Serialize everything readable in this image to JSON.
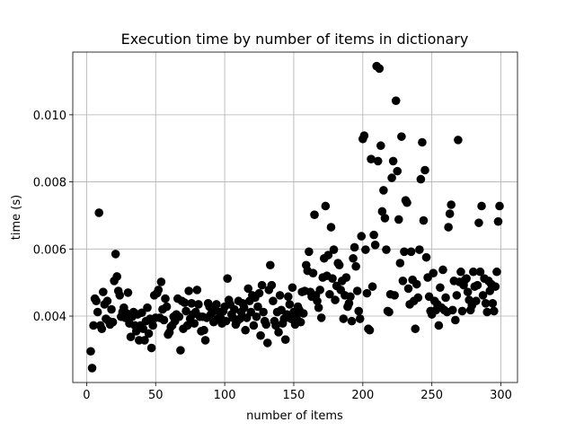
{
  "chart_data": {
    "type": "scatter",
    "title": "Execution time by number of items in dictionary",
    "x_label": "number of items",
    "y_label": "time (s)",
    "color": "#000000",
    "grid": true,
    "xlim": [
      -10,
      312
    ],
    "ylim": [
      0.00202,
      0.01187
    ],
    "xticks": [
      0,
      50,
      100,
      150,
      200,
      250,
      300
    ],
    "yticks": [
      0.004,
      0.006,
      0.008,
      {
        "value": 0.01,
        "label": "0.010"
      }
    ],
    "x": [
      3,
      4,
      5,
      6,
      7,
      8,
      9,
      10,
      11,
      12,
      13,
      14,
      15,
      16,
      17,
      18,
      19,
      20,
      21,
      22,
      23,
      24,
      25,
      26,
      27,
      28,
      29,
      30,
      31,
      32,
      33,
      34,
      35,
      36,
      37,
      38,
      39,
      40,
      41,
      42,
      43,
      44,
      45,
      46,
      47,
      48,
      49,
      50,
      51,
      52,
      53,
      54,
      55,
      56,
      57,
      58,
      59,
      60,
      61,
      62,
      63,
      64,
      65,
      66,
      67,
      68,
      69,
      70,
      71,
      72,
      73,
      74,
      75,
      76,
      77,
      78,
      79,
      80,
      81,
      82,
      83,
      84,
      85,
      86,
      87,
      88,
      89,
      90,
      91,
      92,
      93,
      94,
      95,
      96,
      97,
      98,
      99,
      100,
      101,
      102,
      103,
      104,
      105,
      106,
      107,
      108,
      109,
      110,
      111,
      112,
      113,
      114,
      115,
      116,
      117,
      118,
      119,
      120,
      121,
      122,
      123,
      124,
      125,
      126,
      127,
      128,
      129,
      130,
      131,
      132,
      133,
      134,
      135,
      136,
      137,
      138,
      139,
      140,
      141,
      142,
      143,
      144,
      145,
      146,
      147,
      148,
      149,
      150,
      151,
      152,
      153,
      154,
      155,
      156,
      157,
      158,
      159,
      160,
      161,
      162,
      163,
      164,
      165,
      166,
      167,
      168,
      169,
      170,
      171,
      172,
      173,
      174,
      175,
      176,
      177,
      178,
      179,
      180,
      181,
      182,
      183,
      184,
      185,
      186,
      187,
      188,
      189,
      190,
      191,
      192,
      193,
      194,
      195,
      196,
      197,
      198,
      199,
      200,
      201,
      202,
      203,
      204,
      205,
      206,
      207,
      208,
      209,
      210,
      211,
      212,
      213,
      214,
      215,
      216,
      217,
      218,
      219,
      220,
      221,
      222,
      223,
      224,
      225,
      226,
      227,
      228,
      229,
      230,
      231,
      232,
      233,
      234,
      235,
      236,
      237,
      238,
      239,
      240,
      241,
      242,
      243,
      244,
      245,
      246,
      247,
      248,
      249,
      250,
      251,
      252,
      253,
      254,
      255,
      256,
      257,
      258,
      259,
      260,
      261,
      262,
      263,
      264,
      265,
      266,
      267,
      268,
      269,
      270,
      271,
      272,
      273,
      274,
      275,
      276,
      277,
      278,
      279,
      280,
      281,
      282,
      283,
      284,
      285,
      286,
      287,
      288,
      289,
      290,
      291,
      292,
      293,
      294,
      295,
      296,
      297,
      298,
      299
    ],
    "values": [
      0.00295,
      0.00245,
      0.00372,
      0.00452,
      0.00445,
      0.00412,
      0.00708,
      0.00372,
      0.00362,
      0.00472,
      0.00435,
      0.00392,
      0.00445,
      0.00385,
      0.00375,
      0.0042,
      0.00382,
      0.00505,
      0.00585,
      0.00518,
      0.00475,
      0.00462,
      0.00398,
      0.00412,
      0.00425,
      0.00395,
      0.00408,
      0.0047,
      0.00378,
      0.00338,
      0.00398,
      0.00412,
      0.00372,
      0.00355,
      0.00405,
      0.00328,
      0.00372,
      0.0041,
      0.00362,
      0.00328,
      0.00385,
      0.00425,
      0.00348,
      0.00392,
      0.00305,
      0.00372,
      0.00462,
      0.00395,
      0.00468,
      0.00478,
      0.00395,
      0.00502,
      0.0042,
      0.00388,
      0.00452,
      0.00428,
      0.00345,
      0.00352,
      0.00368,
      0.00372,
      0.00398,
      0.00385,
      0.00405,
      0.00452,
      0.00398,
      0.00298,
      0.00445,
      0.00362,
      0.0044,
      0.00415,
      0.00372,
      0.00475,
      0.00392,
      0.00438,
      0.00405,
      0.00378,
      0.00412,
      0.00478,
      0.00435,
      0.00398,
      0.00355,
      0.00398,
      0.00358,
      0.00328,
      0.00395,
      0.00438,
      0.00428,
      0.00405,
      0.00412,
      0.00382,
      0.0042,
      0.00435,
      0.00392,
      0.00412,
      0.00395,
      0.00378,
      0.00415,
      0.00428,
      0.00385,
      0.00512,
      0.00448,
      0.00435,
      0.00405,
      0.00395,
      0.0042,
      0.00375,
      0.00385,
      0.00445,
      0.00392,
      0.00412,
      0.00438,
      0.00425,
      0.00358,
      0.00395,
      0.00482,
      0.00445,
      0.00412,
      0.00462,
      0.00372,
      0.00455,
      0.00398,
      0.00428,
      0.00468,
      0.00342,
      0.00492,
      0.00412,
      0.00385,
      0.00375,
      0.0032,
      0.00478,
      0.00552,
      0.00492,
      0.00445,
      0.00385,
      0.00372,
      0.00412,
      0.00352,
      0.00462,
      0.00418,
      0.00378,
      0.00392,
      0.0033,
      0.00405,
      0.00458,
      0.00435,
      0.00392,
      0.00485,
      0.00412,
      0.00375,
      0.00395,
      0.00428,
      0.00418,
      0.00382,
      0.00472,
      0.00408,
      0.00475,
      0.00552,
      0.00535,
      0.00592,
      0.00472,
      0.00458,
      0.00528,
      0.00702,
      0.00462,
      0.00445,
      0.00425,
      0.00478,
      0.00395,
      0.00515,
      0.00572,
      0.00728,
      0.0052,
      0.00582,
      0.00465,
      0.00665,
      0.00512,
      0.00598,
      0.00448,
      0.0049,
      0.00558,
      0.00552,
      0.00478,
      0.00505,
      0.00392,
      0.00462,
      0.00515,
      0.00428,
      0.00438,
      0.00458,
      0.00385,
      0.00572,
      0.00605,
      0.00548,
      0.00475,
      0.00415,
      0.00392,
      0.00638,
      0.00928,
      0.00938,
      0.00598,
      0.00468,
      0.00362,
      0.00358,
      0.00868,
      0.00488,
      0.00642,
      0.00612,
      0.01145,
      0.00862,
      0.01138,
      0.00908,
      0.00712,
      0.00775,
      0.00692,
      0.00598,
      0.00415,
      0.00412,
      0.00465,
      0.00812,
      0.00862,
      0.00462,
      0.01042,
      0.00832,
      0.00688,
      0.00558,
      0.00935,
      0.00505,
      0.00592,
      0.00745,
      0.00738,
      0.00482,
      0.00435,
      0.00592,
      0.00508,
      0.00445,
      0.00362,
      0.00495,
      0.00455,
      0.00598,
      0.00808,
      0.00918,
      0.00685,
      0.00835,
      0.00575,
      0.00515,
      0.00458,
      0.00415,
      0.00405,
      0.00528,
      0.00445,
      0.00418,
      0.00435,
      0.00372,
      0.00485,
      0.00425,
      0.00538,
      0.00418,
      0.00455,
      0.00412,
      0.00665,
      0.00705,
      0.00732,
      0.00418,
      0.00505,
      0.00388,
      0.00462,
      0.00925,
      0.00502,
      0.00532,
      0.00415,
      0.00492,
      0.00508,
      0.00512,
      0.00472,
      0.00448,
      0.00418,
      0.00432,
      0.00532,
      0.00488,
      0.00445,
      0.00492,
      0.00678,
      0.00532,
      0.00728,
      0.00462,
      0.00512,
      0.00438,
      0.00412,
      0.00505,
      0.00475,
      0.00495,
      0.00438,
      0.00415,
      0.00488,
      0.00532,
      0.00682,
      0.00728
    ]
  }
}
